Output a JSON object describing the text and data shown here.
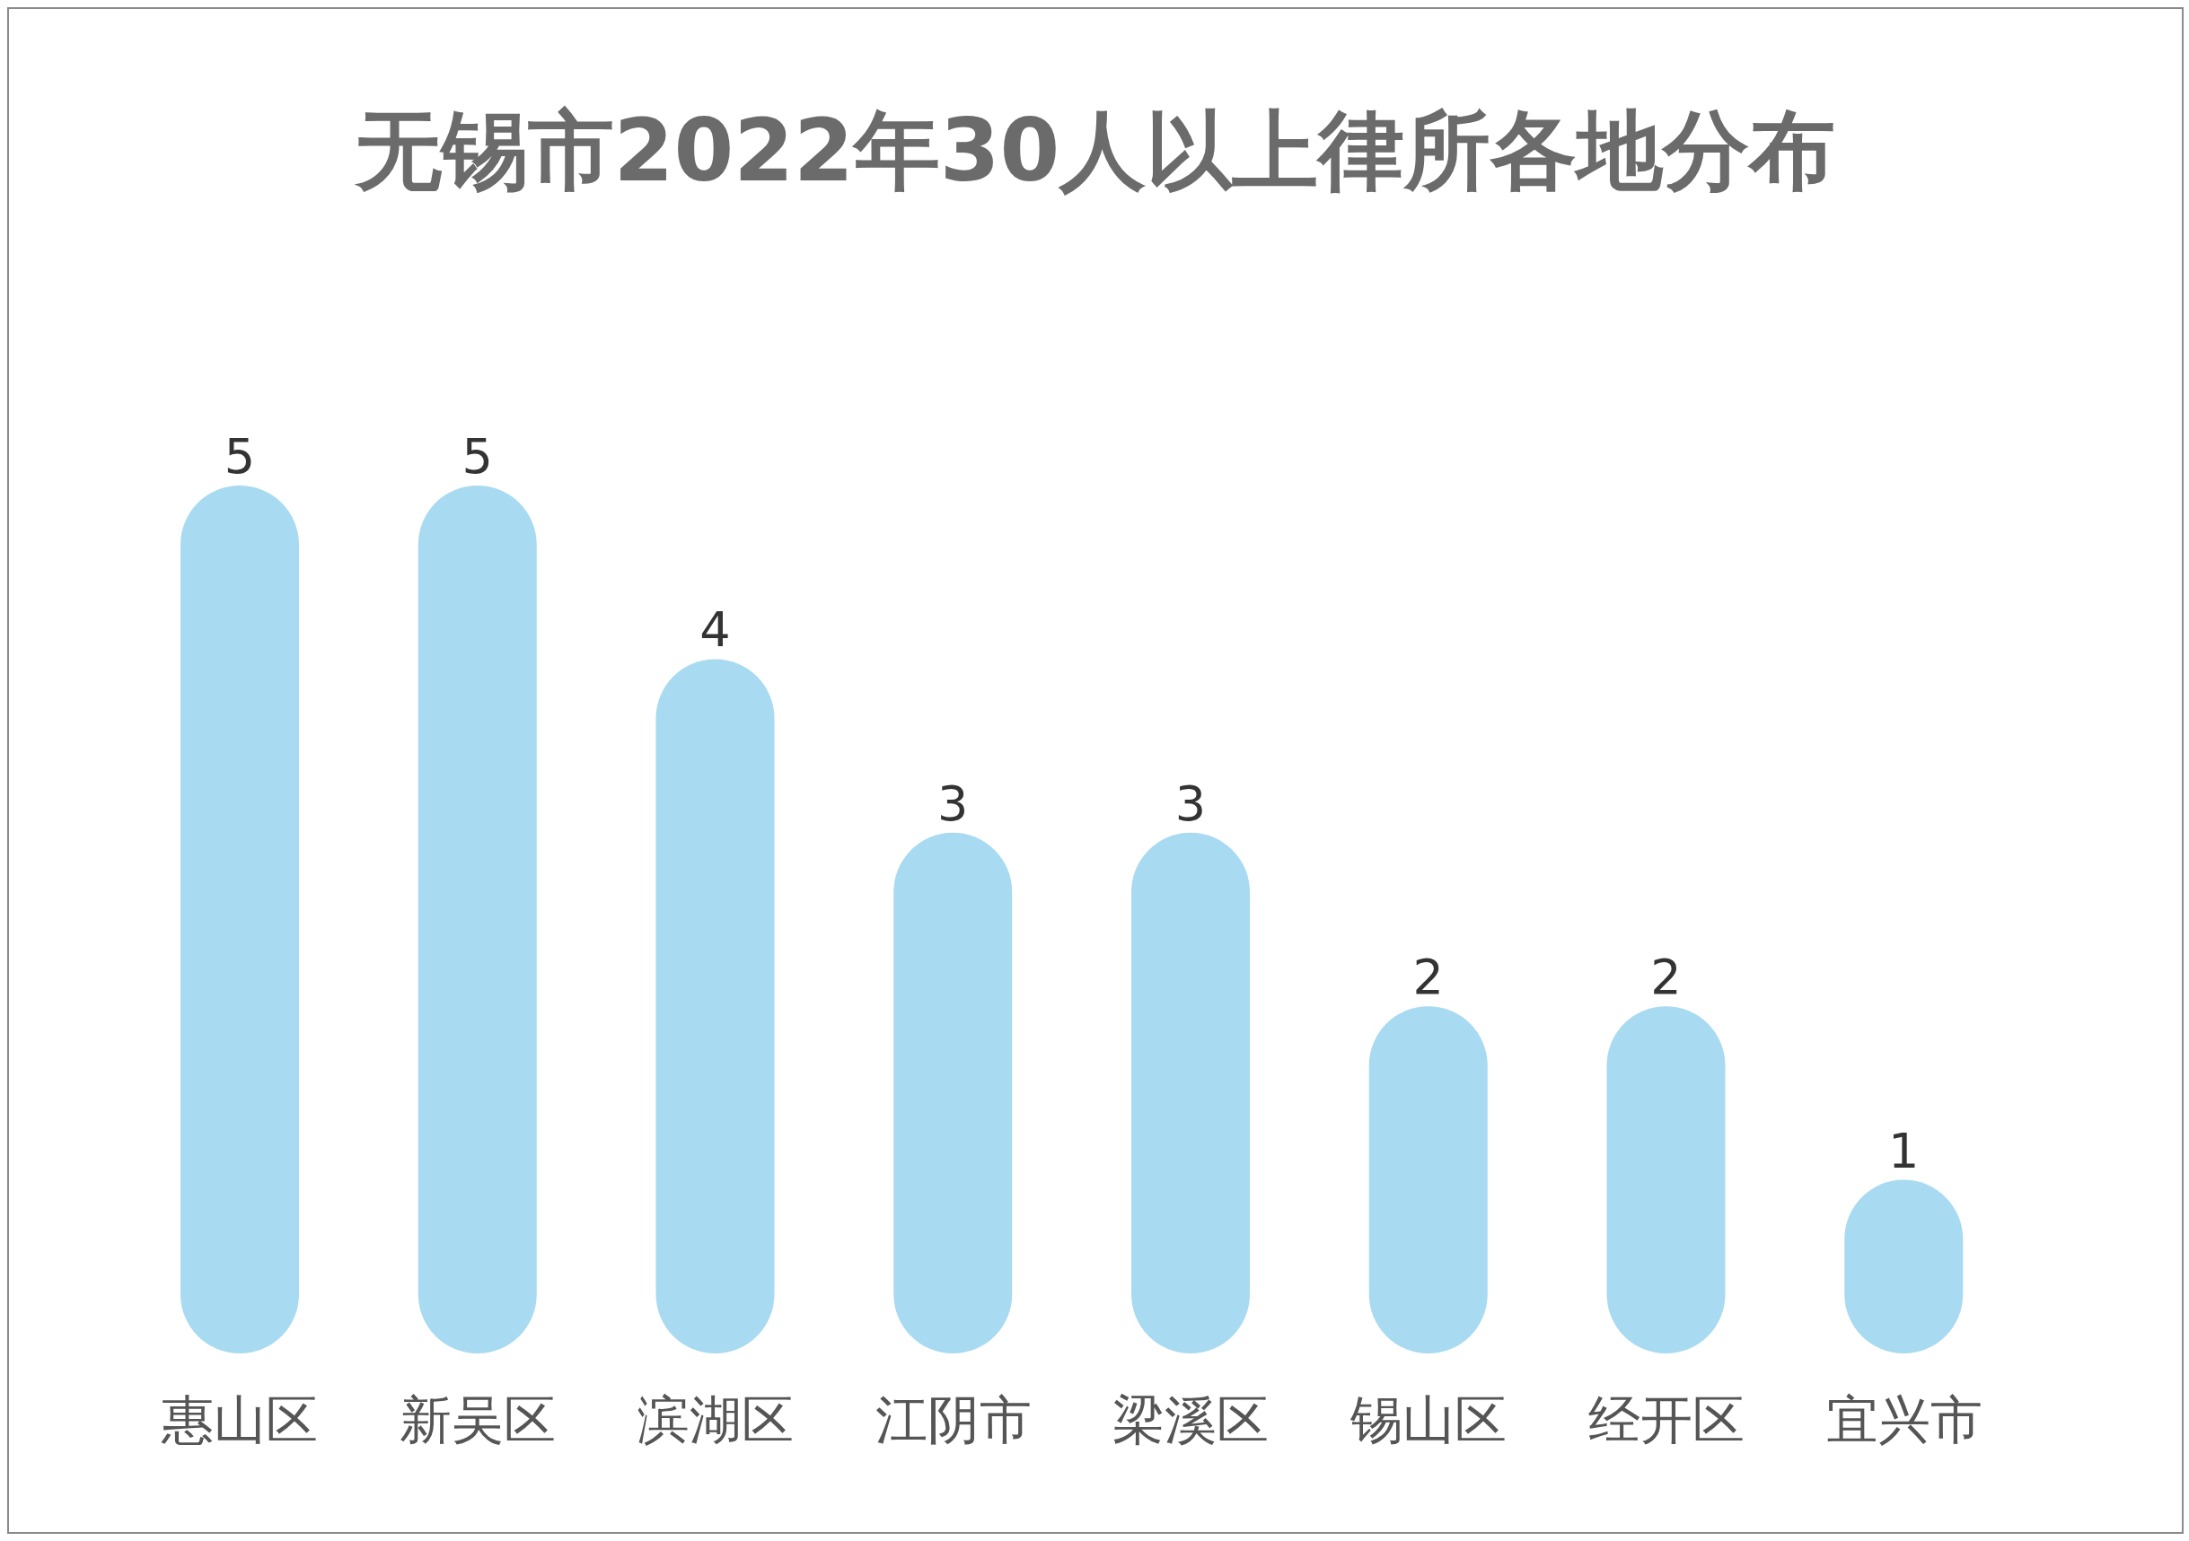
{
  "chart_data": {
    "type": "bar",
    "title": "无锡市2022年30人以上律所各地分布",
    "categories": [
      "惠山区",
      "新吴区",
      "滨湖区",
      "江阴市",
      "梁溪区",
      "锡山区",
      "经开区",
      "宜兴市"
    ],
    "values": [
      5,
      5,
      4,
      3,
      3,
      2,
      2,
      1
    ],
    "color": "#a8daf1",
    "data_labels": true,
    "grid": false,
    "legend": false
  }
}
